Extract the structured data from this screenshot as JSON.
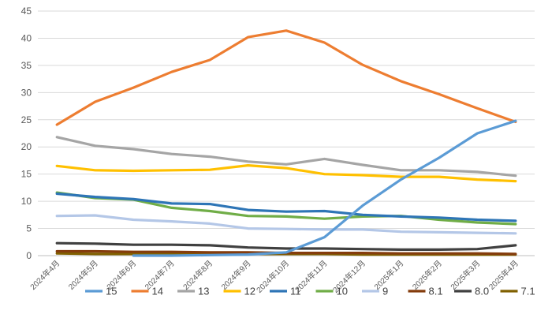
{
  "chart_data": {
    "type": "line",
    "title": "",
    "xlabel": "",
    "ylabel": "",
    "ylim": [
      0,
      45
    ],
    "yticks": [
      0,
      5,
      10,
      15,
      20,
      25,
      30,
      35,
      40,
      45
    ],
    "grid": "horizontal",
    "legend": "bottom",
    "x": [
      "2024年4月",
      "2024年5月",
      "2024年6月",
      "2024年7月",
      "2024年8月",
      "2024年9月",
      "2024年10月",
      "2024年11月",
      "2024年12月",
      "2025年1月",
      "2025年2月",
      "2025年3月",
      "2025年4月"
    ],
    "series": [
      {
        "name": "15",
        "color": "#5B9BD5",
        "values": [
          null,
          null,
          0.0,
          0.0,
          0.1,
          0.2,
          0.6,
          3.4,
          9.2,
          14.0,
          18.0,
          22.5,
          24.8
        ]
      },
      {
        "name": "14",
        "color": "#ED7D31",
        "values": [
          24.1,
          28.3,
          30.9,
          33.8,
          36.0,
          40.2,
          41.4,
          39.2,
          35.1,
          32.1,
          29.7,
          27.1,
          24.6
        ]
      },
      {
        "name": "13",
        "color": "#A5A5A5",
        "values": [
          21.8,
          20.2,
          19.6,
          18.7,
          18.2,
          17.3,
          16.8,
          17.8,
          16.7,
          15.7,
          15.7,
          15.4,
          14.7
        ]
      },
      {
        "name": "12",
        "color": "#FFC000",
        "values": [
          16.5,
          15.7,
          15.6,
          15.7,
          15.8,
          16.6,
          16.1,
          15.0,
          14.8,
          14.5,
          14.5,
          14.0,
          13.7
        ]
      },
      {
        "name": "11",
        "color": "#2E75B6",
        "values": [
          11.4,
          10.8,
          10.4,
          9.6,
          9.5,
          8.4,
          8.1,
          8.2,
          7.5,
          7.2,
          7.0,
          6.6,
          6.4
        ]
      },
      {
        "name": "10",
        "color": "#70AD47",
        "values": [
          11.6,
          10.6,
          10.3,
          8.8,
          8.2,
          7.3,
          7.2,
          6.8,
          7.2,
          7.3,
          6.6,
          6.1,
          5.8
        ]
      },
      {
        "name": "9",
        "color": "#B4C7E7",
        "values": [
          7.3,
          7.4,
          6.6,
          6.3,
          5.9,
          5.0,
          4.9,
          4.8,
          4.8,
          4.4,
          4.3,
          4.2,
          4.1
        ]
      },
      {
        "name": "8.1",
        "color": "#843C0C",
        "values": [
          0.8,
          0.8,
          0.7,
          0.7,
          0.6,
          0.6,
          0.5,
          0.5,
          0.5,
          0.4,
          0.4,
          0.4,
          0.3
        ]
      },
      {
        "name": "8.0",
        "color": "#404040",
        "values": [
          2.3,
          2.2,
          2.0,
          2.0,
          1.9,
          1.5,
          1.3,
          1.3,
          1.2,
          1.1,
          1.1,
          1.2,
          1.9
        ]
      },
      {
        "name": "7.1",
        "color": "#806000",
        "values": [
          0.4,
          0.3,
          0.3,
          0.3,
          0.3,
          0.3,
          0.3,
          0.3,
          0.2,
          0.2,
          0.2,
          0.2,
          0.2
        ]
      }
    ]
  }
}
